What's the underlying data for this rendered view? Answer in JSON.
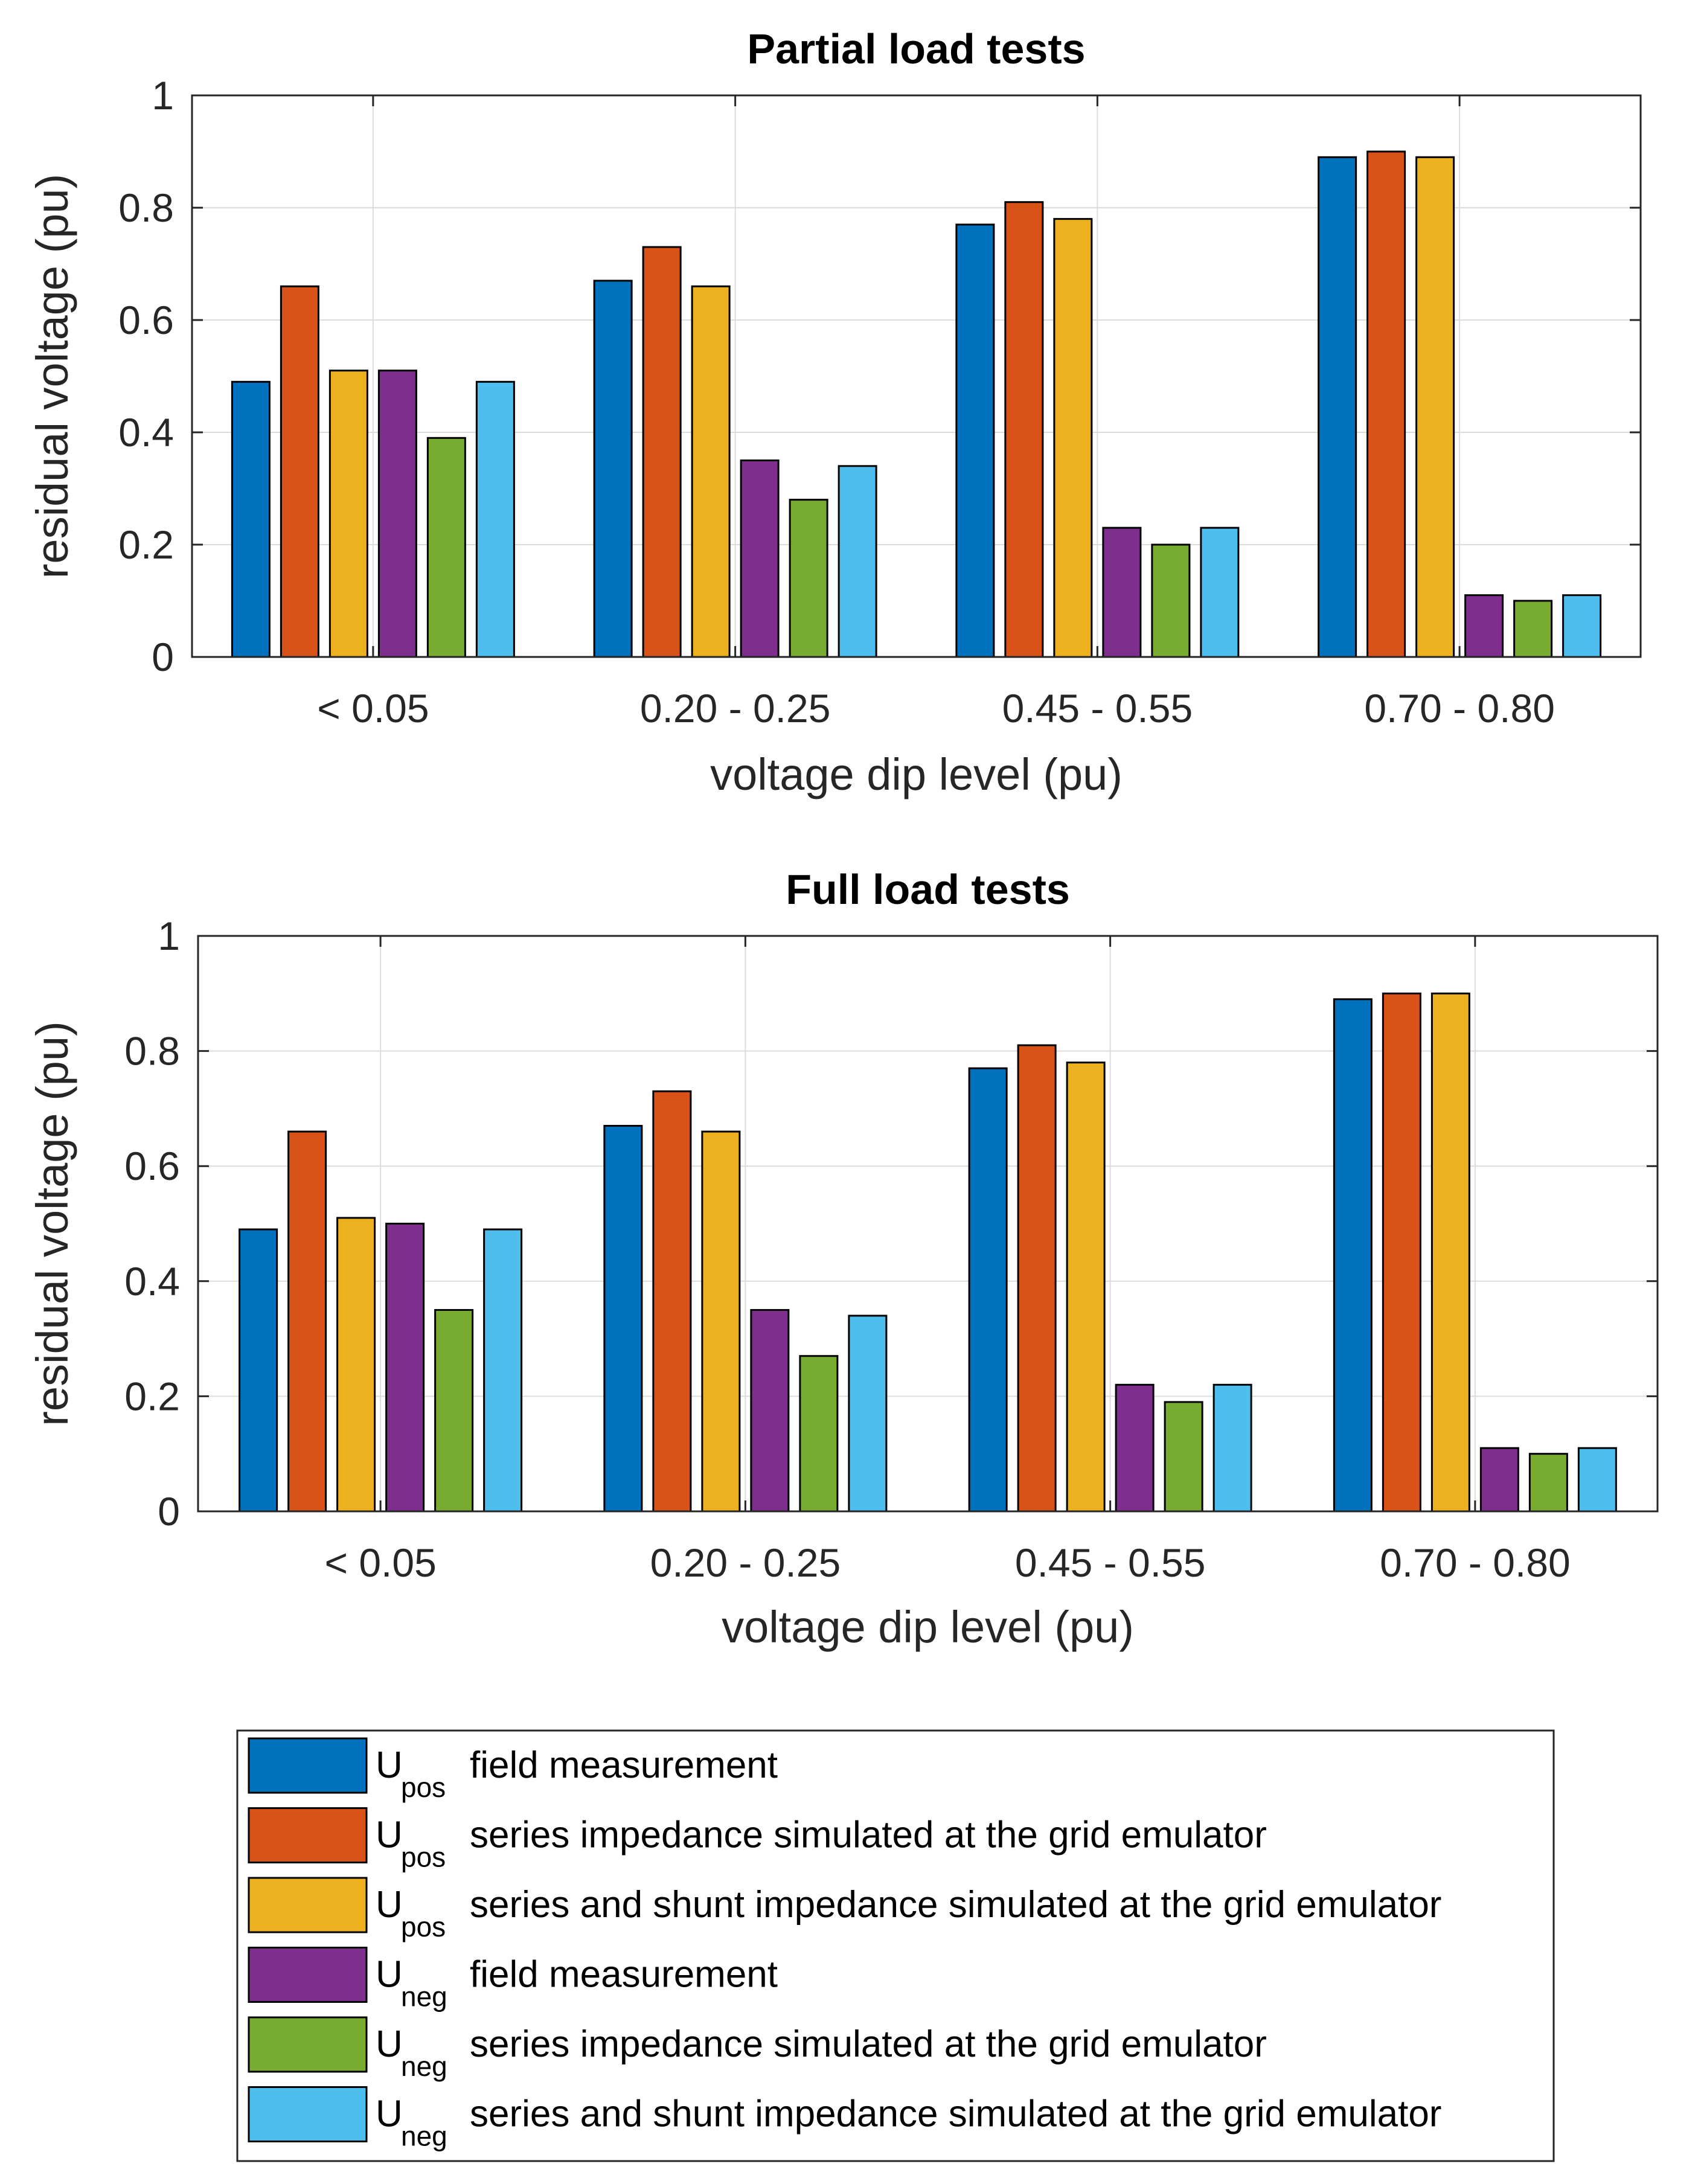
{
  "chart_data": [
    {
      "type": "bar",
      "title": "Partial load tests",
      "xlabel": "voltage dip level (pu)",
      "ylabel": "residual voltage (pu)",
      "ylim": [
        0,
        1
      ],
      "yticks": [
        "0",
        "0.2",
        "0.4",
        "0.6",
        "0.8",
        "1"
      ],
      "grid": true,
      "categories": [
        "< 0.05",
        "0.20 - 0.25",
        "0.45 - 0.55",
        "0.70 - 0.80"
      ],
      "series": [
        {
          "name": "U_pos field measurement",
          "values": [
            0.49,
            0.67,
            0.77,
            0.89
          ]
        },
        {
          "name": "U_pos series impedance simulated at the grid emulator",
          "values": [
            0.66,
            0.73,
            0.81,
            0.9
          ]
        },
        {
          "name": "U_pos series and shunt impedance simulated at the grid emulator",
          "values": [
            0.51,
            0.66,
            0.78,
            0.89
          ]
        },
        {
          "name": "U_neg field measurement",
          "values": [
            0.51,
            0.35,
            0.23,
            0.11
          ]
        },
        {
          "name": "U_neg series impedance simulated at the grid emulator",
          "values": [
            0.39,
            0.28,
            0.2,
            0.1
          ]
        },
        {
          "name": "U_neg series and shunt impedance simulated at the grid emulator",
          "values": [
            0.49,
            0.34,
            0.23,
            0.11
          ]
        }
      ]
    },
    {
      "type": "bar",
      "title": "Full load tests",
      "xlabel": "voltage dip level (pu)",
      "ylabel": "residual voltage (pu)",
      "ylim": [
        0,
        1
      ],
      "yticks": [
        "0",
        "0.2",
        "0.4",
        "0.6",
        "0.8",
        "1"
      ],
      "grid": true,
      "categories": [
        "< 0.05",
        "0.20 - 0.25",
        "0.45 - 0.55",
        "0.70 - 0.80"
      ],
      "series": [
        {
          "name": "U_pos field measurement",
          "values": [
            0.49,
            0.67,
            0.77,
            0.89
          ]
        },
        {
          "name": "U_pos series impedance simulated at the grid emulator",
          "values": [
            0.66,
            0.73,
            0.81,
            0.9
          ]
        },
        {
          "name": "U_pos series and shunt impedance simulated at the grid emulator",
          "values": [
            0.51,
            0.66,
            0.78,
            0.9
          ]
        },
        {
          "name": "U_neg field measurement",
          "values": [
            0.5,
            0.35,
            0.22,
            0.11
          ]
        },
        {
          "name": "U_neg series impedance simulated at the grid emulator",
          "values": [
            0.35,
            0.27,
            0.19,
            0.1
          ]
        },
        {
          "name": "U_neg series and shunt impedance simulated at the grid emulator",
          "values": [
            0.49,
            0.34,
            0.22,
            0.11
          ]
        }
      ]
    }
  ],
  "legend": {
    "placement": "bottom",
    "items": [
      {
        "symbol": "U",
        "subscript": "pos",
        "text": "field measurement",
        "color": "#0072BD"
      },
      {
        "symbol": "U",
        "subscript": "pos",
        "text": "series impedance simulated at the grid emulator",
        "color": "#D95319"
      },
      {
        "symbol": "U",
        "subscript": "pos",
        "text": "series and shunt impedance simulated at the grid emulator",
        "color": "#EDB120"
      },
      {
        "symbol": "U",
        "subscript": "neg",
        "text": "field measurement",
        "color": "#7E2F8E"
      },
      {
        "symbol": "U",
        "subscript": "neg",
        "text": "series impedance simulated at the grid emulator",
        "color": "#77AC30"
      },
      {
        "symbol": "U",
        "subscript": "neg",
        "text": "series and shunt impedance simulated at the grid emulator",
        "color": "#4DBEEE"
      }
    ]
  }
}
